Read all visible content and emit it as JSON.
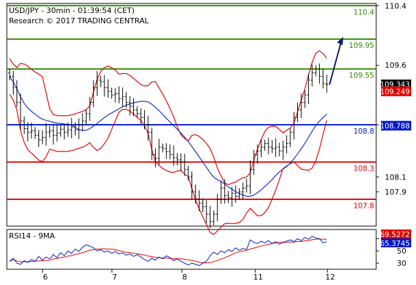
{
  "header": {
    "title": "USD/JPY - 30min - 01:39:54 (CET)",
    "source": "Research © 2017 TRADING CENTRAL"
  },
  "colors": {
    "resistance": "#2e8b00",
    "pivot": "#0018c8",
    "support": "#e00000",
    "price": "#000000",
    "bollinger": "#e00000",
    "moving_average": "#1030c0",
    "arrow": "#0a1a6a",
    "rsi": "#0018c8",
    "rsi_ma": "#e00000"
  },
  "chart_data": [
    {
      "type": "candlestick",
      "title": "USD/JPY - 30min - 01:39:54 (CET)",
      "subtitle": "Research © 2017 TRADING CENTRAL",
      "x_ticks": [
        "6",
        "7",
        "8",
        "11",
        "12"
      ],
      "y_ticks": [
        110.4,
        109.6,
        108.8,
        108.1,
        107.9
      ],
      "y_tick_labels": [
        "110.4",
        "109.6",
        "108.8",
        "108.1",
        "107.9"
      ],
      "ylim": [
        107.44,
        110.43
      ],
      "grid": false,
      "levels": [
        {
          "value": 110.4,
          "label": "110.4",
          "kind": "resistance"
        },
        {
          "value": 109.95,
          "label": "109.95",
          "kind": "resistance"
        },
        {
          "value": 109.55,
          "label": "109.55",
          "kind": "resistance"
        },
        {
          "value": 108.8,
          "label": "108.8",
          "kind": "pivot"
        },
        {
          "value": 108.3,
          "label": "108.3",
          "kind": "support"
        },
        {
          "value": 107.8,
          "label": "107.8",
          "kind": "support"
        }
      ],
      "price_tags": [
        {
          "value": 109.343,
          "label": "109.343",
          "style": "last"
        },
        {
          "value": 109.249,
          "label": "109.249",
          "style": "bollinger"
        },
        {
          "value": 108.788,
          "label": "108.788",
          "style": "ma"
        }
      ],
      "close_series": [
        109.45,
        109.3,
        109.1,
        108.85,
        108.75,
        108.7,
        108.72,
        108.66,
        108.6,
        108.63,
        108.7,
        108.72,
        108.66,
        108.69,
        108.74,
        108.7,
        108.73,
        108.77,
        108.73,
        108.8,
        108.85,
        108.95,
        109.1,
        109.3,
        109.4,
        109.38,
        109.3,
        109.25,
        109.2,
        109.22,
        109.15,
        109.18,
        109.1,
        109.05,
        109.0,
        108.95,
        108.9,
        108.8,
        108.7,
        108.4,
        108.35,
        108.5,
        108.48,
        108.44,
        108.4,
        108.36,
        108.33,
        108.3,
        108.2,
        108.1,
        107.9,
        107.8,
        107.75,
        107.7,
        107.6,
        107.5,
        107.6,
        107.8,
        107.95,
        107.85,
        107.82,
        107.88,
        107.84,
        107.9,
        107.95,
        107.98,
        108.2,
        108.4,
        108.45,
        108.5,
        108.55,
        108.5,
        108.48,
        108.5,
        108.45,
        108.5,
        108.55,
        108.7,
        108.9,
        109.0,
        109.1,
        109.2,
        109.4,
        109.5,
        109.55,
        109.45,
        109.35,
        109.34
      ],
      "series": [
        {
          "name": "USD/JPY",
          "kind": "price"
        },
        {
          "kind": "bollinger upper"
        },
        {
          "kind": "bollinger lower"
        },
        {
          "kind": "moving average"
        }
      ]
    },
    {
      "type": "line",
      "title": "RSI14 - 9MA",
      "y_ticks": [
        70,
        50,
        30
      ],
      "y_tick_labels": [
        "70",
        "50",
        "30"
      ],
      "ylim": [
        20,
        85
      ],
      "price_tags": [
        {
          "value": 69.5272,
          "label": "69.5272",
          "style": "ma"
        },
        {
          "value": 65.3745,
          "label": "65.3745",
          "style": "rsi"
        }
      ],
      "rsi_series": [
        33,
        38,
        30,
        28,
        34,
        31,
        36,
        33,
        41,
        35,
        40,
        37,
        44,
        39,
        47,
        42,
        50,
        46,
        53,
        49,
        56,
        60,
        58,
        55,
        50,
        52,
        48,
        50,
        46,
        49,
        45,
        47,
        43,
        45,
        41,
        44,
        40,
        36,
        33,
        38,
        35,
        40,
        37,
        42,
        39,
        34,
        37,
        33,
        30,
        27,
        30,
        28,
        26,
        30,
        33,
        42,
        48,
        44,
        50,
        47,
        52,
        49,
        55,
        51,
        54,
        52,
        68,
        64,
        62,
        66,
        63,
        67,
        62,
        65,
        61,
        64,
        66,
        68,
        65,
        70,
        67,
        72,
        69,
        74,
        71,
        70,
        63,
        65
      ],
      "series": [
        {
          "kind": "RSI"
        },
        {
          "kind": "RSI moving average"
        }
      ]
    }
  ]
}
